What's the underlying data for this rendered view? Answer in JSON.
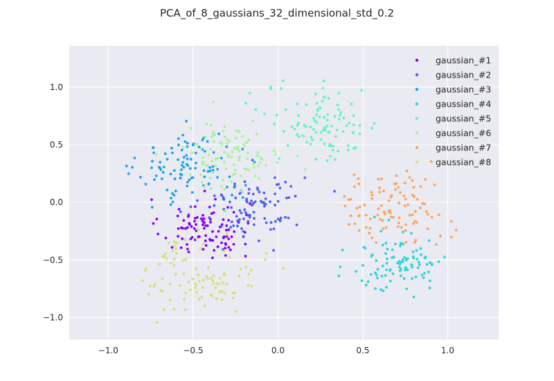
{
  "chart_data": {
    "type": "scatter",
    "title": "PCA_of_8_gaussians_32_dimensional_std_0.2",
    "xlabel": "",
    "ylabel": "",
    "xlim": [
      -1.23,
      1.3
    ],
    "ylim": [
      -1.19,
      1.36
    ],
    "xticks": [
      -1.0,
      -0.5,
      0.0,
      0.5,
      1.0
    ],
    "yticks": [
      -1.0,
      -0.5,
      0.0,
      0.5,
      1.0
    ],
    "xtick_labels": [
      "−1.0",
      "−0.5",
      "0.0",
      "0.5",
      "1.0"
    ],
    "ytick_labels": [
      "−1.0",
      "−0.5",
      "0.0",
      "0.5",
      "1.0"
    ],
    "grid": true,
    "legend_position": "top-right",
    "series": [
      {
        "name": "gaussian_#1",
        "color": "#8000ff",
        "center": [
          -0.43,
          -0.23
        ],
        "spread": 0.13,
        "count": 100
      },
      {
        "name": "gaussian_#2",
        "color": "#4b5ff5",
        "center": [
          -0.15,
          -0.02
        ],
        "spread": 0.15,
        "count": 100
      },
      {
        "name": "gaussian_#3",
        "color": "#1aa2ea",
        "center": [
          -0.52,
          0.3
        ],
        "spread": 0.15,
        "count": 100
      },
      {
        "name": "gaussian_#4",
        "color": "#2ad6d7",
        "center": [
          0.72,
          -0.52
        ],
        "spread": 0.14,
        "count": 100
      },
      {
        "name": "gaussian_#5",
        "color": "#5cf7c0",
        "center": [
          0.27,
          0.68
        ],
        "spread": 0.17,
        "count": 100
      },
      {
        "name": "gaussian_#6",
        "color": "#a2f59a",
        "center": [
          -0.28,
          0.42
        ],
        "spread": 0.15,
        "count": 100
      },
      {
        "name": "gaussian_#7",
        "color": "#fba35c",
        "center": [
          0.68,
          -0.05
        ],
        "spread": 0.16,
        "count": 100
      },
      {
        "name": "gaussian_#8",
        "color": "#d4e07a",
        "center": [
          -0.45,
          -0.62
        ],
        "spread": 0.17,
        "count": 100
      }
    ]
  }
}
